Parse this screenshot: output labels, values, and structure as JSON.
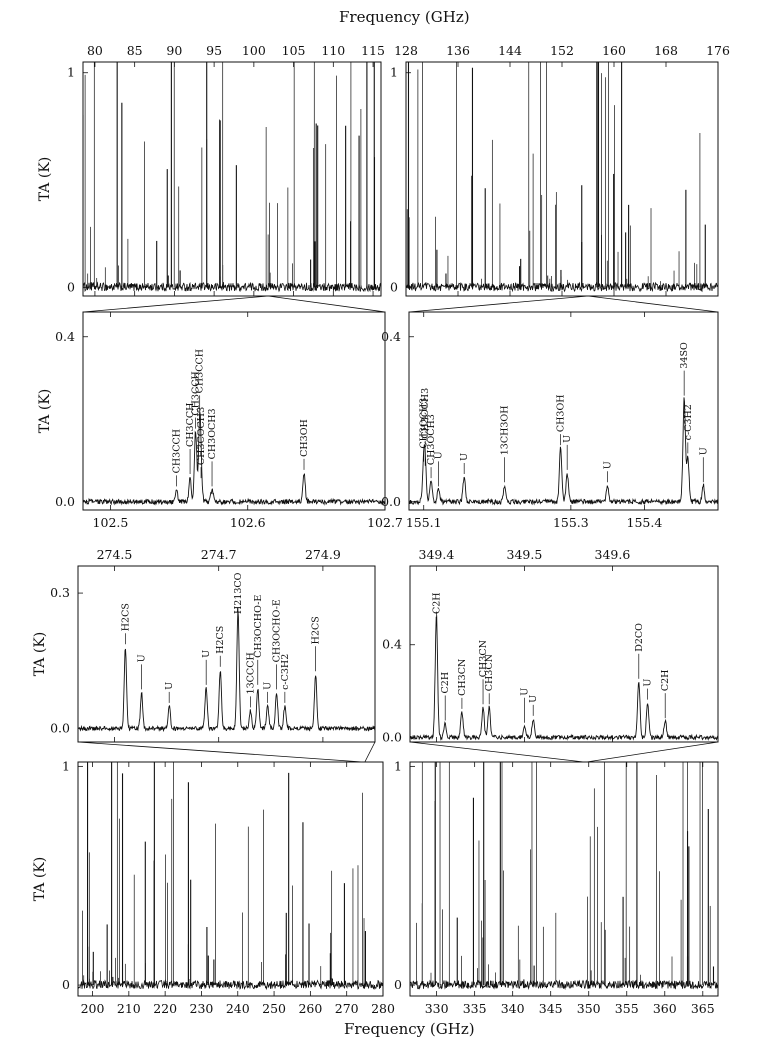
{
  "figure": {
    "top_axis_label": "Frequency (GHz)",
    "bottom_axis_label": "Frequency (GHz)"
  },
  "chart_data": [
    {
      "type": "line",
      "id": "overview_3mm",
      "ylabel": "TA (K)",
      "xlim": [
        78.5,
        116
      ],
      "ylim": [
        -0.04,
        1.05
      ],
      "xticks": [
        80,
        85,
        90,
        95,
        100,
        105,
        110,
        115
      ],
      "yticks": [
        0,
        1
      ],
      "xticks_position": "top",
      "connector": [
        100,
        102.7,
        101.8
      ]
    },
    {
      "type": "line",
      "id": "overview_2mm",
      "ylabel": "",
      "xlim": [
        128,
        176
      ],
      "ylim": [
        -0.04,
        1.05
      ],
      "xticks": [
        128,
        136,
        144,
        152,
        160,
        168,
        176
      ],
      "yticks": [
        0,
        1
      ],
      "xticks_position": "top",
      "connector": [
        155.1,
        155.5,
        156
      ]
    },
    {
      "type": "line",
      "id": "zoom_102GHz",
      "ylabel": "TA (K)",
      "xlim": [
        102.48,
        102.7
      ],
      "ylim": [
        -0.02,
        0.46
      ],
      "xticks": [
        102.5,
        102.6,
        102.7
      ],
      "yticks": [
        0,
        0.4
      ],
      "xticks_position": "bottom",
      "peaks": [
        {
          "x": 102.548,
          "y": 0.03,
          "label": "CH3CCH"
        },
        {
          "x": 102.558,
          "y": 0.06,
          "label": "CH3CCH"
        },
        {
          "x": 102.562,
          "y": 0.17,
          "label": "CH3CCH"
        },
        {
          "x": 102.565,
          "y": 0.19,
          "label": "CH3CCH"
        },
        {
          "x": 102.566,
          "y": 0.05,
          "label": "CH3COCH3"
        },
        {
          "x": 102.574,
          "y": 0.03,
          "label": "CH3OCH3"
        },
        {
          "x": 102.641,
          "y": 0.07,
          "label": "CH3OH"
        }
      ]
    },
    {
      "type": "line",
      "id": "zoom_155GHz",
      "ylabel": "",
      "xlim": [
        155.08,
        155.5
      ],
      "ylim": [
        -0.02,
        0.46
      ],
      "xticks": [
        155.1,
        155.3,
        155.4
      ],
      "yticks": [
        0,
        0.4
      ],
      "xticks_position": "bottom",
      "peaks": [
        {
          "x": 155.1,
          "y": 0.09,
          "label": "CH3OCH3"
        },
        {
          "x": 155.102,
          "y": 0.08,
          "label": "CH3OCH3"
        },
        {
          "x": 155.11,
          "y": 0.05,
          "label": "CH3OCH3"
        },
        {
          "x": 155.12,
          "y": 0.03,
          "label": "U"
        },
        {
          "x": 155.155,
          "y": 0.06,
          "label": "U"
        },
        {
          "x": 155.21,
          "y": 0.04,
          "label": "13CH3OH"
        },
        {
          "x": 155.286,
          "y": 0.13,
          "label": "CH3OH"
        },
        {
          "x": 155.295,
          "y": 0.07,
          "label": "U"
        },
        {
          "x": 155.35,
          "y": 0.04,
          "label": "U"
        },
        {
          "x": 155.454,
          "y": 0.25,
          "label": "34SO"
        },
        {
          "x": 155.459,
          "y": 0.11,
          "label": "c-C3H2"
        },
        {
          "x": 155.48,
          "y": 0.04,
          "label": "U"
        }
      ]
    },
    {
      "type": "line",
      "id": "zoom_274GHz",
      "ylabel": "TA (K)",
      "xlim": [
        274.43,
        275.0
      ],
      "ylim": [
        -0.03,
        0.36
      ],
      "xticks": [
        274.5,
        274.7,
        274.9
      ],
      "yticks": [
        0,
        0.3
      ],
      "xticks_position": "top",
      "connector": [
        215.5,
        232,
        226.5,
        261,
        273.5,
        278
      ],
      "peaks": [
        {
          "x": 274.521,
          "y": 0.18,
          "label": "H2CS"
        },
        {
          "x": 274.552,
          "y": 0.08,
          "label": "U"
        },
        {
          "x": 274.605,
          "y": 0.05,
          "label": "U"
        },
        {
          "x": 274.676,
          "y": 0.09,
          "label": "U"
        },
        {
          "x": 274.703,
          "y": 0.13,
          "label": "H2CS"
        },
        {
          "x": 274.737,
          "y": 0.26,
          "label": "H213CO"
        },
        {
          "x": 274.761,
          "y": 0.04,
          "label": "13CCCH"
        },
        {
          "x": 274.775,
          "y": 0.09,
          "label": "CH3OCHO-E"
        },
        {
          "x": 274.794,
          "y": 0.05,
          "label": "U"
        },
        {
          "x": 274.811,
          "y": 0.08,
          "label": "CH3OCHO-E"
        },
        {
          "x": 274.827,
          "y": 0.05,
          "label": "c-C3H2"
        },
        {
          "x": 274.886,
          "y": 0.12,
          "label": "H2CS"
        }
      ]
    },
    {
      "type": "line",
      "id": "zoom_349GHz",
      "ylabel": "",
      "xlim": [
        349.37,
        349.72
      ],
      "ylim": [
        -0.02,
        0.74
      ],
      "xticks": [
        349.4,
        349.5,
        349.6
      ],
      "yticks": [
        0,
        0.4
      ],
      "xticks_position": "top",
      "connector": [
        348.4,
        349.8
      ],
      "peaks": [
        {
          "x": 349.4,
          "y": 0.53,
          "label": "C2H"
        },
        {
          "x": 349.41,
          "y": 0.06,
          "label": "C2H"
        },
        {
          "x": 349.429,
          "y": 0.11,
          "label": "CH3CN"
        },
        {
          "x": 349.453,
          "y": 0.13,
          "label": "CH3CN"
        },
        {
          "x": 349.46,
          "y": 0.13,
          "label": "CH3CN"
        },
        {
          "x": 349.5,
          "y": 0.05,
          "label": "U"
        },
        {
          "x": 349.51,
          "y": 0.08,
          "label": "U"
        },
        {
          "x": 349.63,
          "y": 0.24,
          "label": "D2CO"
        },
        {
          "x": 349.64,
          "y": 0.15,
          "label": "U"
        },
        {
          "x": 349.66,
          "y": 0.07,
          "label": "C2H"
        }
      ]
    },
    {
      "type": "line",
      "id": "overview_1mm",
      "ylabel": "TA (K)",
      "xlim": [
        196,
        280
      ],
      "ylim": [
        -0.05,
        1.02
      ],
      "xticks": [
        200,
        210,
        220,
        230,
        240,
        250,
        260,
        270,
        280
      ],
      "yticks": [
        0,
        1
      ],
      "xticks_position": "bottom"
    },
    {
      "type": "line",
      "id": "overview_0.8mm",
      "ylabel": "",
      "xlim": [
        326.5,
        367
      ],
      "ylim": [
        -0.05,
        1.02
      ],
      "xticks": [
        330,
        335,
        340,
        345,
        350,
        355,
        360,
        365
      ],
      "yticks": [
        0,
        1
      ],
      "xticks_position": "bottom"
    }
  ]
}
